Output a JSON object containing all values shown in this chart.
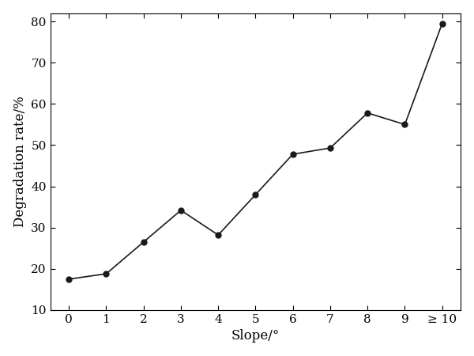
{
  "x_labels": [
    "0",
    "1",
    "2",
    "3",
    "4",
    "5",
    "6",
    "7",
    "8",
    "9",
    "≥ 10"
  ],
  "y_values": [
    17.5,
    18.8,
    26.5,
    34.2,
    28.2,
    38.0,
    47.8,
    49.3,
    57.8,
    55.0,
    79.5
  ],
  "xlabel": "Slope/°",
  "ylabel": "Degradation rate/%",
  "ylim": [
    10,
    82
  ],
  "yticks": [
    10,
    20,
    30,
    40,
    50,
    60,
    70,
    80
  ],
  "line_color": "#1a1a1a",
  "marker": "o",
  "markersize": 5,
  "markercolor": "#1a1a1a",
  "linewidth": 1.2,
  "background_color": "#ffffff",
  "xlabel_fontsize": 12,
  "ylabel_fontsize": 12,
  "tick_fontsize": 11,
  "font_family": "serif"
}
